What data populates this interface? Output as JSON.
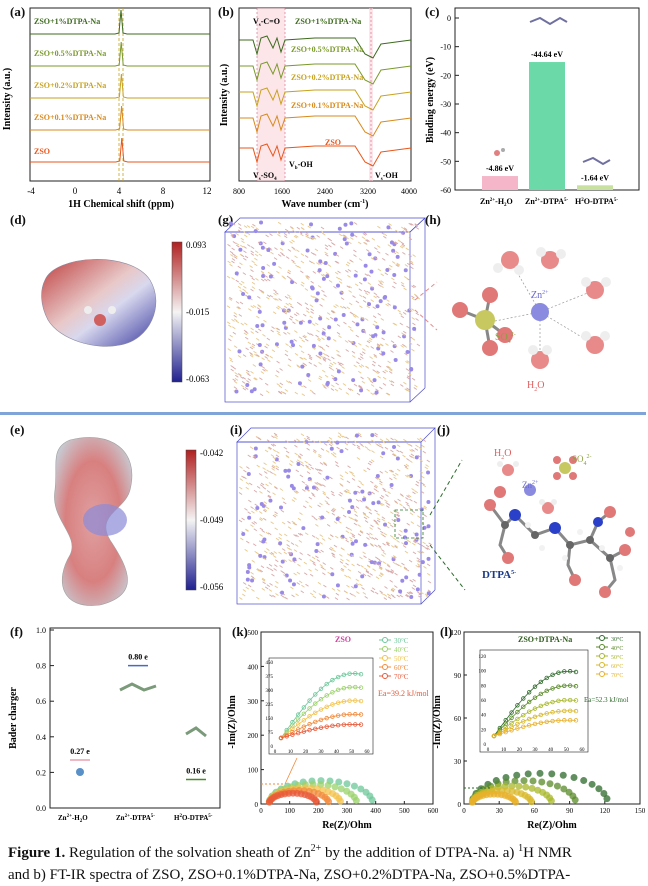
{
  "panels": {
    "a": {
      "label": "(a)",
      "ylabel": "Intensity (a.u.)",
      "xlabel": "1H Chemical shift (ppm)",
      "xticks": [
        "-4",
        "0",
        "4",
        "8",
        "12"
      ],
      "series": [
        "ZSO+1%DTPA-Na",
        "ZSO+0.5%DTPA-Na",
        "ZSO+0.2%DTPA-Na",
        "ZSO+0.1%DTPA-Na",
        "ZSO"
      ],
      "colors": [
        "#3d6b1e",
        "#7a9a2a",
        "#c8a21e",
        "#d88a1c",
        "#e8561a"
      ]
    },
    "b": {
      "label": "(b)",
      "ylabel": "Intensity (a.u.)",
      "xlabel": "Wave number (cm",
      "xticks": [
        "800",
        "1600",
        "2400",
        "3200",
        "4000"
      ],
      "series": [
        "ZSO+1%DTPA-Na",
        "ZSO+0.5%DTPA-Na",
        "ZSO+0.2%DTPA-Na",
        "ZSO+0.1%DTPA-Na",
        "ZSO"
      ],
      "annotations": [
        "V",
        "-C=O",
        "V",
        "-SO",
        "V",
        "-OH",
        "V",
        "-OH"
      ]
    },
    "c": {
      "label": "(c)",
      "ylabel": "Binding energy (eV)",
      "yticks": [
        "0",
        "-10",
        "-20",
        "-30",
        "-40",
        "-50",
        "-60"
      ],
      "chart_data": {
        "type": "bar",
        "categories": [
          "Zn2+-H2O",
          "Zn2+-DTPA5-",
          "H2O-DTPA5-"
        ],
        "values": [
          -4.86,
          -44.64,
          -1.64
        ],
        "value_labels": [
          "-4.86 eV",
          "-44.64 eV",
          "-1.64 eV"
        ],
        "ylim": [
          0,
          -60
        ],
        "colors": [
          "#f4b6c8",
          "#6bd9a8",
          "#c8e0a0"
        ]
      }
    },
    "d": {
      "label": "(d)",
      "scale": [
        "0.093",
        "-0.015",
        "-0.063"
      ]
    },
    "e": {
      "label": "(e)",
      "scale": [
        "-0.042",
        "-0.049",
        "-0.056"
      ]
    },
    "g": {
      "label": "(g)"
    },
    "h": {
      "label": "(h)",
      "texts": [
        "Zn",
        "SO",
        "H",
        "O"
      ]
    },
    "i": {
      "label": "(i)"
    },
    "j": {
      "label": "(j)",
      "texts": [
        "H",
        "O",
        "SO",
        "Zn",
        "DTPA"
      ]
    },
    "f": {
      "label": "(f)",
      "ylabel": "Bader charger",
      "yticks": [
        "0.0",
        "0.2",
        "0.4",
        "0.6",
        "0.8",
        "1.0"
      ],
      "chart_data": {
        "type": "scatter",
        "categories": [
          "Zn2+-H2O",
          "Zn2+-DTPA5-",
          "H2O-DTPA5-"
        ],
        "values": [
          0.27,
          0.8,
          0.16
        ],
        "value_labels": [
          "0.27 e",
          "0.80 e",
          "0.16 e"
        ],
        "ylim": [
          0,
          1.0
        ]
      }
    },
    "k": {
      "label": "(k)",
      "title": "ZSO",
      "xlabel": "Re(Z)/Ohm",
      "ylabel": "-Im(Z)/Ohm",
      "xticks": [
        "0",
        "100",
        "200",
        "300",
        "400",
        "500",
        "600"
      ],
      "yticks": [
        "0",
        "100",
        "200",
        "300",
        "400",
        "500"
      ],
      "legend": [
        "30°C",
        "40°C",
        "50°C",
        "60°C",
        "70°C"
      ],
      "ea": "Ea=39.2 kJ/mol",
      "inset_yticks": [
        "0",
        "75",
        "150",
        "225",
        "300",
        "375",
        "450"
      ],
      "inset_xticks": [
        "0",
        "10",
        "20",
        "30",
        "40",
        "50",
        "60"
      ],
      "colors": [
        "#6cc79a",
        "#9ad16a",
        "#f3c24a",
        "#f28a3a",
        "#e85a3a"
      ]
    },
    "l": {
      "label": "(l)",
      "title": "ZSO+DTPA-Na",
      "xlabel": "Re(Z)/Ohm",
      "ylabel": "-Im(Z)/Ohm",
      "xticks": [
        "0",
        "30",
        "60",
        "90",
        "120",
        "150"
      ],
      "yticks": [
        "0",
        "30",
        "60",
        "90",
        "120"
      ],
      "legend": [
        "30°C",
        "40°C",
        "50°C",
        "60°C",
        "70°C"
      ],
      "ea": "Ea=52.3 kJ/mol",
      "inset_yticks": [
        "0",
        "20",
        "40",
        "60",
        "80",
        "100",
        "120"
      ],
      "inset_xticks": [
        "0",
        "10",
        "20",
        "30",
        "40",
        "50",
        "60"
      ],
      "colors": [
        "#2d6a2a",
        "#5a8a2a",
        "#a8b82a",
        "#d8b82a",
        "#e8b02a"
      ]
    }
  },
  "caption": {
    "line1_bold": "Figure 1.",
    "line1_text": "Regulation of the solvation sheath of Zn",
    "line1_tail": "by the addition of DTPA-Na. a)",
    "line1_end": "H NMR",
    "line2": "and b) FT-IR spectra of ZSO, ZSO+0.1%DTPA-Na, ZSO+0.2%DTPA-Na, ZSO+0.5%DTPA-"
  }
}
